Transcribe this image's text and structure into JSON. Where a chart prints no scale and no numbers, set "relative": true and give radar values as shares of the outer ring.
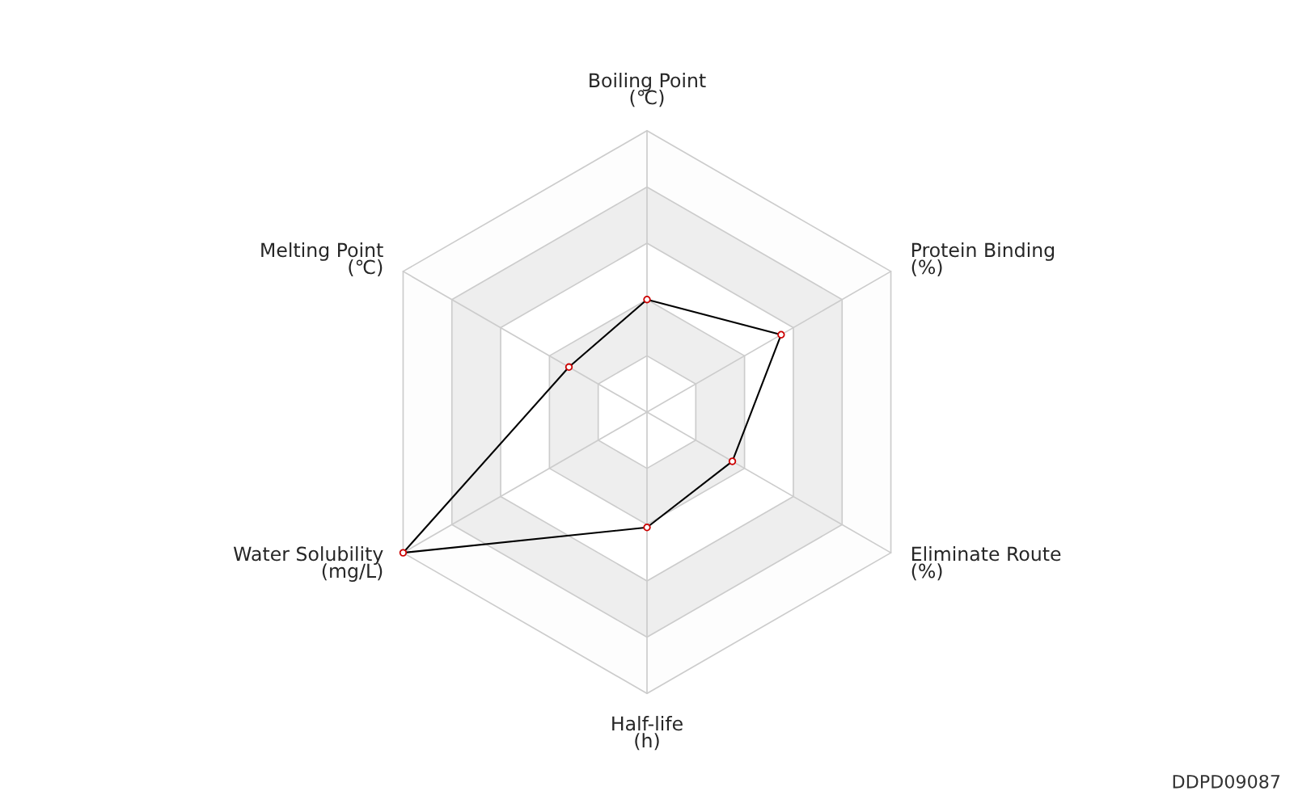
{
  "chart_data": {
    "type": "radar",
    "relative": true,
    "categories": [
      "Boiling Point\n(℃)",
      "Protein Binding\n(%)",
      "Eliminate Route\n(%)",
      "Half-life\n(h)",
      "Water Solubility\n(mg/L)",
      "Melting Point\n(℃)"
    ],
    "series": [
      {
        "color": "#000000",
        "values": [
          0.4,
          0.55,
          0.35,
          0.41,
          1.0,
          0.32
        ]
      }
    ],
    "marker": "circle",
    "line_style": "solid",
    "annotations": [
      "DDPD09087"
    ]
  }
}
